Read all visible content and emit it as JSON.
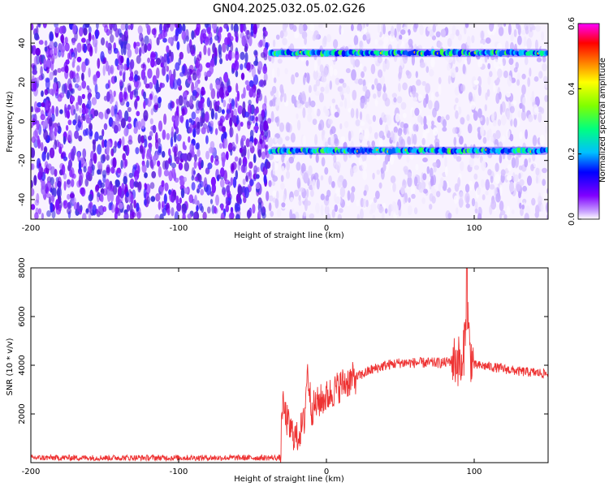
{
  "title": "GN04.2025.032.05.02.G26",
  "chart_data": [
    {
      "type": "heatmap",
      "xlabel": "Height of straight line (km)",
      "ylabel": "Frequency (Hz)",
      "xlim": [
        -200,
        150
      ],
      "ylim": [
        -50,
        50
      ],
      "xticks": [
        "-200",
        "-100",
        "0",
        "100"
      ],
      "xtick_values": [
        -200,
        -100,
        0,
        100
      ],
      "yticks": [
        "40",
        "20",
        "0",
        "-20",
        "-40"
      ],
      "ytick_values": [
        40,
        20,
        0,
        -20,
        -40
      ],
      "colorbar": {
        "label": "Normalized spectral amplitude",
        "range": [
          0,
          0.6
        ],
        "ticks": [
          "0.0",
          "0.2",
          "0.4",
          "0.6"
        ],
        "tick_values": [
          0,
          0.2,
          0.4,
          0.6
        ],
        "colors": [
          "#ffffff",
          "#c8a0ff",
          "#8000ff",
          "#0000ff",
          "#00c0ff",
          "#00ff80",
          "#80ff00",
          "#ffff00",
          "#ff8000",
          "#ff0000",
          "#ff00ff"
        ]
      },
      "noise_boundary_x": -38,
      "bands": [
        {
          "frequency": 35,
          "x_start": -38,
          "x_end": 150,
          "amplitude": 0.3
        },
        {
          "frequency": -15,
          "x_start": -38,
          "x_end": 150,
          "amplitude": 0.25
        }
      ]
    },
    {
      "type": "line",
      "xlabel": "Height of straight line (km)",
      "ylabel": "SNR (10 * v/v)",
      "xlim": [
        -200,
        150
      ],
      "ylim": [
        0,
        8000
      ],
      "xticks": [
        "-200",
        "-100",
        "0",
        "100"
      ],
      "xtick_values": [
        -200,
        -100,
        0,
        100
      ],
      "yticks": [
        "8000",
        "6000",
        "4000",
        "2000"
      ],
      "ytick_values": [
        8000,
        6000,
        4000,
        2000
      ],
      "grid": false,
      "series": [
        {
          "color": "#ee3333",
          "x": [
            -200,
            -150,
            -100,
            -50,
            -31,
            -30,
            -25,
            -20,
            -15,
            -13,
            -10,
            -5,
            0,
            10,
            20,
            30,
            40,
            50,
            60,
            70,
            80,
            85,
            90,
            92,
            95,
            97,
            100,
            110,
            120,
            130,
            140,
            150
          ],
          "y": [
            200,
            200,
            200,
            200,
            200,
            2400,
            1400,
            1000,
            1700,
            3800,
            2200,
            2500,
            2700,
            3200,
            3500,
            3800,
            4000,
            4100,
            4100,
            4100,
            4100,
            4200,
            4200,
            3500,
            7000,
            4500,
            4000,
            3950,
            3850,
            3750,
            3700,
            3650
          ]
        }
      ]
    }
  ]
}
